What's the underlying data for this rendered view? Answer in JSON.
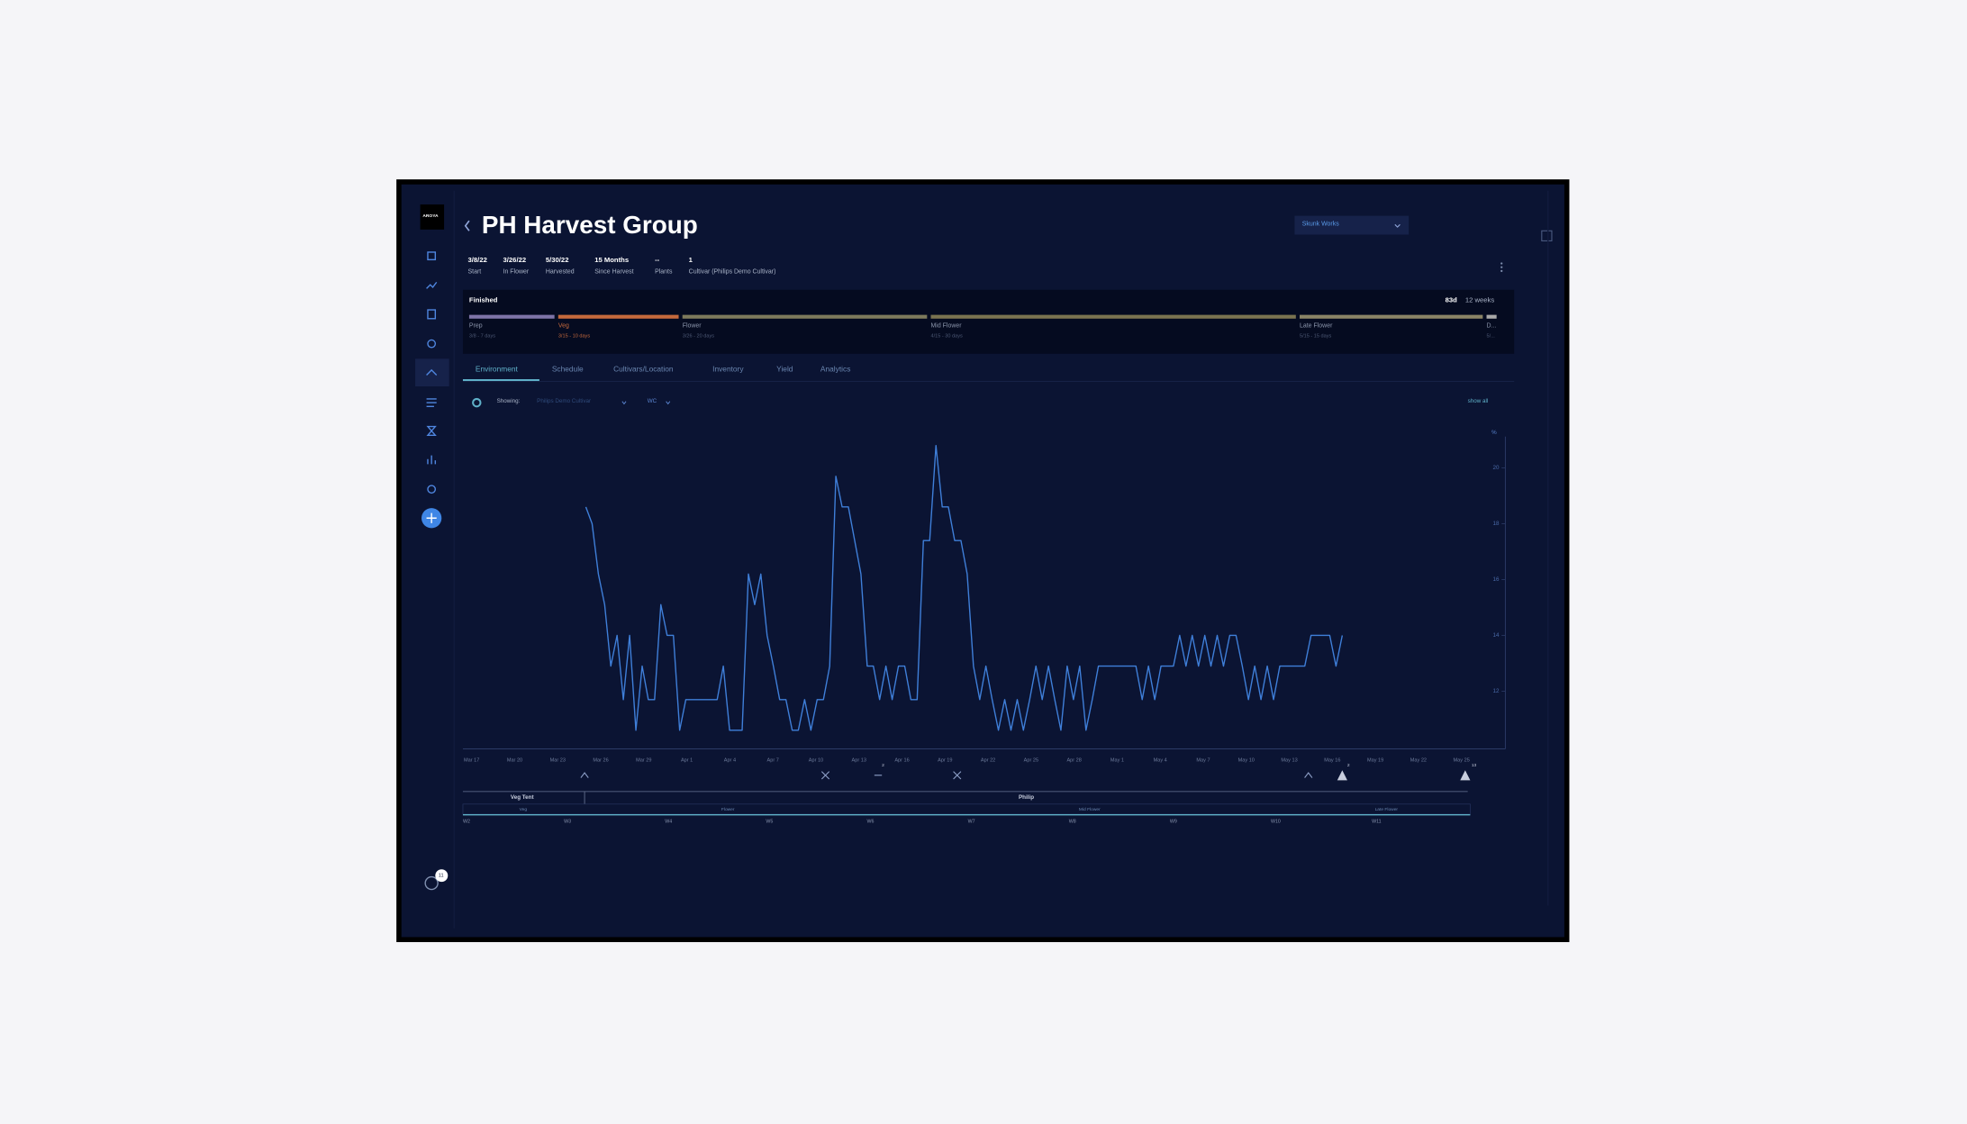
{
  "app": {
    "logo": "AROYA"
  },
  "header": {
    "title": "PH Harvest Group",
    "facility": "Skunk Works"
  },
  "stats": [
    {
      "value": "3/8/22",
      "label": "Start"
    },
    {
      "value": "3/26/22",
      "label": "In Flower"
    },
    {
      "value": "5/30/22",
      "label": "Harvested"
    },
    {
      "value": "15 Months",
      "label": "Since Harvest"
    },
    {
      "value": "--",
      "label": "Plants"
    },
    {
      "value": "1",
      "label": "Cultivar (Philips Demo Cultivar)"
    }
  ],
  "phases": {
    "status": "Finished",
    "days": "83d",
    "weeks": "12 weeks",
    "items": [
      {
        "name": "Prep",
        "detail": "3/8 - 7 days",
        "color": "#7e74a8"
      },
      {
        "name": "Veg",
        "detail": "3/15 - 10 days",
        "color": "#c5693c"
      },
      {
        "name": "Flower",
        "detail": "3/26 - 20 days",
        "color": "#7d7a5c"
      },
      {
        "name": "Mid Flower",
        "detail": "4/15 - 30 days",
        "color": "#7a7350"
      },
      {
        "name": "Late Flower",
        "detail": "5/15 - 15 days",
        "color": "#8a8466"
      },
      {
        "name": "D...",
        "detail": "5/...",
        "color": "#a9a9a9"
      }
    ]
  },
  "tabs": [
    "Environment",
    "Schedule",
    "Cultivars/Location",
    "Inventory",
    "Yield",
    "Analytics"
  ],
  "filter": {
    "label": "Showing:",
    "cultivar": "Philips Demo Cultivar",
    "metric": "WC",
    "show_all": "show all"
  },
  "chart_data": {
    "type": "line",
    "y_unit": "%",
    "x_tick_labels": [
      "Mar 17",
      "Mar 20",
      "Mar 23",
      "Mar 26",
      "Mar 29",
      "Apr 1",
      "Apr 4",
      "Apr 7",
      "Apr 10",
      "Apr 13",
      "Apr 16",
      "Apr 19",
      "Apr 22",
      "Apr 25",
      "Apr 28",
      "May 1",
      "May 4",
      "May 7",
      "May 10",
      "May 13",
      "May 16",
      "May 19",
      "May 22",
      "May 25"
    ],
    "ylim": [
      10,
      21
    ],
    "yticks": [
      12,
      14,
      16,
      18,
      20
    ],
    "series": [
      {
        "color": "#3f7fd9",
        "values": [
          18.6,
          18.0,
          16.2,
          15.1,
          12.9,
          14.0,
          11.7,
          14.0,
          10.6,
          12.9,
          11.7,
          11.7,
          15.1,
          14.0,
          14.0,
          10.6,
          11.7,
          11.7,
          11.7,
          11.7,
          11.7,
          11.7,
          12.9,
          10.6,
          10.6,
          10.6,
          16.2,
          15.1,
          16.2,
          14.0,
          12.9,
          11.7,
          11.7,
          10.6,
          10.6,
          11.7,
          10.6,
          11.7,
          11.7,
          12.9,
          19.7,
          18.6,
          18.6,
          17.4,
          16.2,
          12.9,
          12.9,
          11.7,
          12.9,
          11.7,
          12.9,
          12.9,
          11.7,
          11.7,
          17.4,
          17.4,
          20.8,
          18.6,
          18.6,
          17.4,
          17.4,
          16.2,
          12.9,
          11.7,
          12.9,
          11.7,
          10.6,
          11.7,
          10.6,
          11.7,
          10.6,
          11.7,
          12.9,
          11.7,
          12.9,
          11.7,
          10.6,
          12.9,
          11.7,
          12.9,
          10.6,
          11.7,
          12.9,
          12.9,
          12.9,
          12.9,
          12.9,
          12.9,
          12.9,
          11.7,
          12.9,
          11.7,
          12.9,
          12.9,
          12.9,
          14.0,
          12.9,
          14.0,
          12.9,
          14.0,
          12.9,
          14.0,
          12.9,
          14.0,
          14.0,
          12.9,
          11.7,
          12.9,
          11.7,
          12.9,
          11.7,
          12.9,
          12.9,
          12.9,
          12.9,
          12.9,
          14.0,
          14.0,
          14.0,
          14.0,
          12.9,
          14.0
        ]
      }
    ]
  },
  "timeline": {
    "locations": [
      "Veg Tent",
      "Philip"
    ],
    "phases": [
      "Veg",
      "Flower",
      "Mid Flower",
      "Late Flower"
    ],
    "weeks": [
      "W2",
      "W3",
      "W4",
      "W5",
      "W6",
      "W7",
      "W8",
      "W9",
      "W10",
      "W11"
    ]
  },
  "event_badges": [
    "2",
    "2",
    "13"
  ],
  "help_badge": "11"
}
